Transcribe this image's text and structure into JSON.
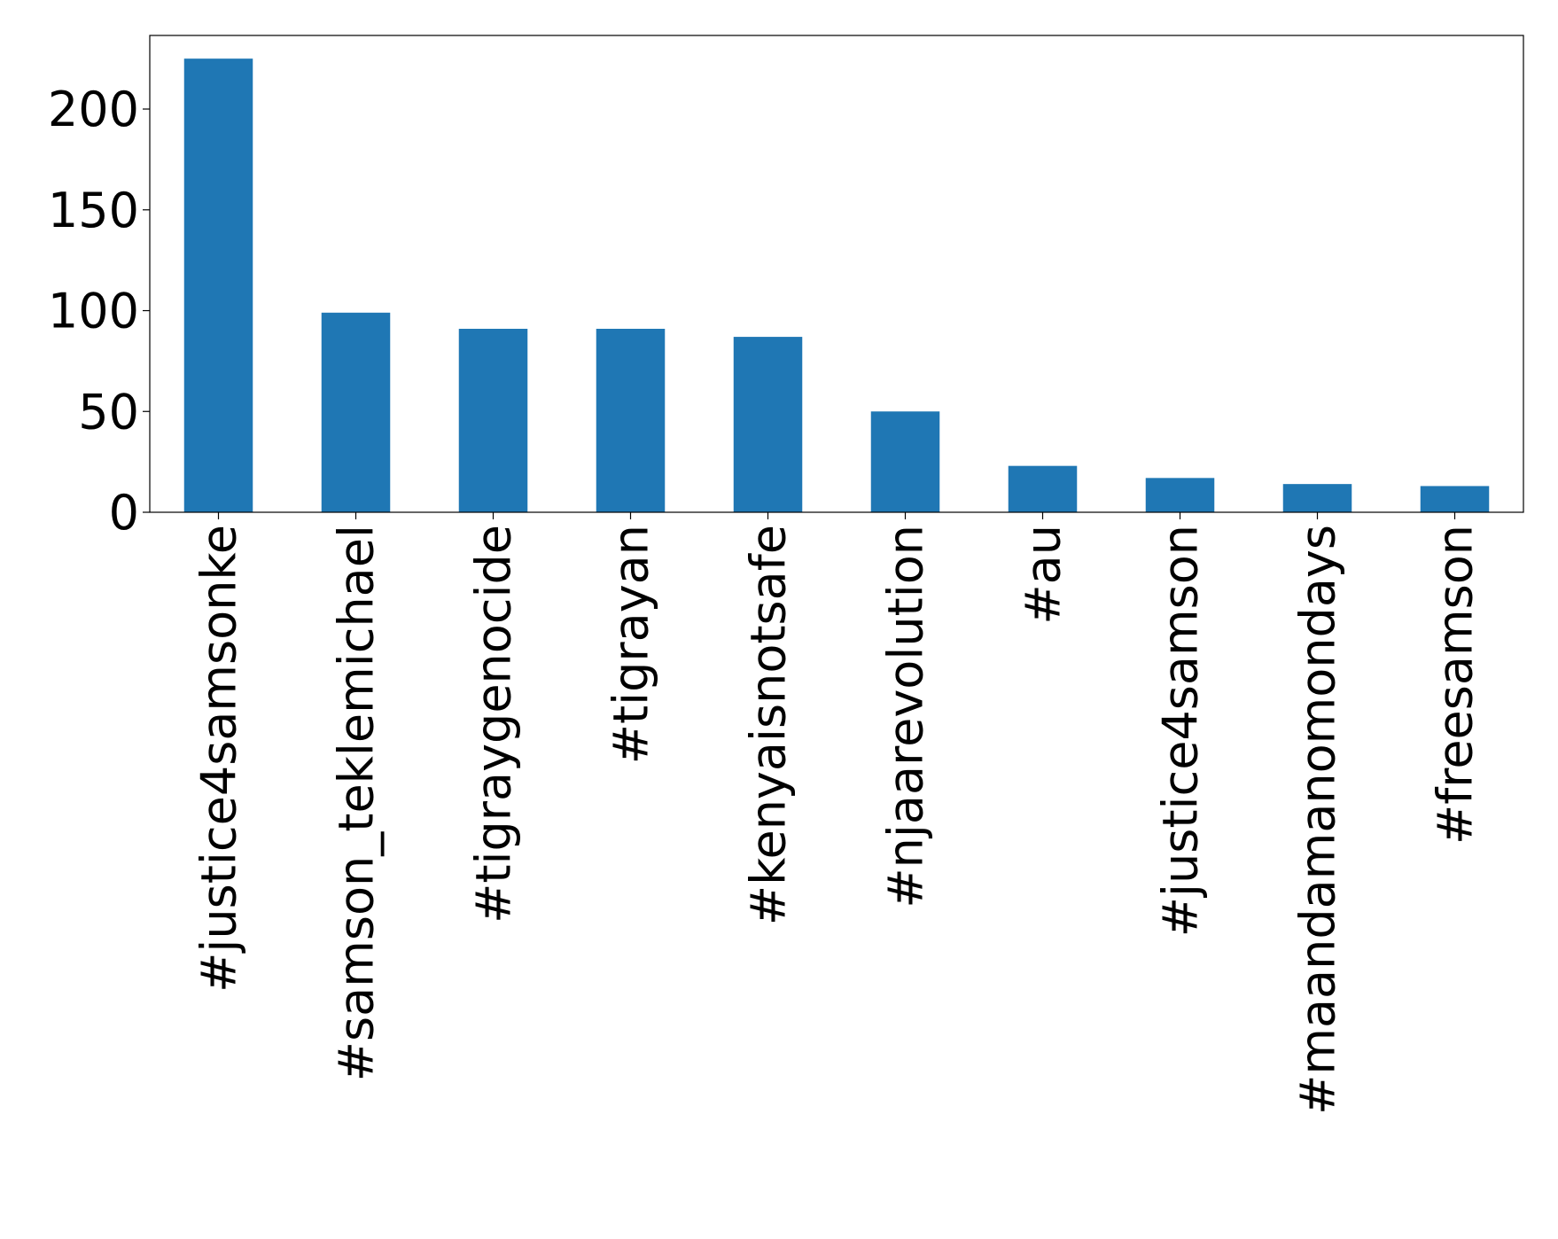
{
  "chart_data": {
    "type": "bar",
    "categories": [
      "#justice4samsonke",
      "#samson_teklemichael",
      "#tigraygenocide",
      "#tigrayan",
      "#kenyaisnotsafe",
      "#njaarevolution",
      "#au",
      "#justice4samson",
      "#maandamanomondays",
      "#freesamson"
    ],
    "values": [
      225,
      99,
      91,
      91,
      87,
      50,
      23,
      17,
      14,
      13
    ],
    "color": "#1f77b4",
    "ylim": [
      0,
      236.5
    ],
    "yticks": [
      0,
      50,
      100,
      150,
      200
    ],
    "grid": false
  }
}
